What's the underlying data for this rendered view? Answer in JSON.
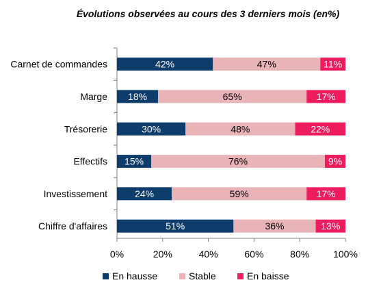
{
  "chart_data": {
    "type": "bar",
    "orientation": "horizontal",
    "stacked": true,
    "title": "Évolutions observées au cours des 3 derniers mois  (en%)",
    "categories": [
      "Carnet de commandes",
      "Marge",
      "Trésorerie",
      "Effectifs",
      "Investissement",
      "Chiffre d'affaires"
    ],
    "series": [
      {
        "name": "En hausse",
        "values": [
          42,
          18,
          30,
          15,
          24,
          51
        ],
        "color": "#0f3d6b",
        "label_color": "#ffffff"
      },
      {
        "name": "Stable",
        "values": [
          47,
          65,
          48,
          76,
          59,
          36
        ],
        "color": "#e8b4b8",
        "label_color": "#000000"
      },
      {
        "name": "En baisse",
        "values": [
          11,
          17,
          22,
          9,
          17,
          13
        ],
        "color": "#ec1c5e",
        "label_color": "#ffffff"
      }
    ],
    "xlim": [
      0,
      100
    ],
    "xticks": [
      "0%",
      "20%",
      "40%",
      "60%",
      "80%",
      "100%"
    ],
    "legend_position": "bottom",
    "grid": false
  }
}
